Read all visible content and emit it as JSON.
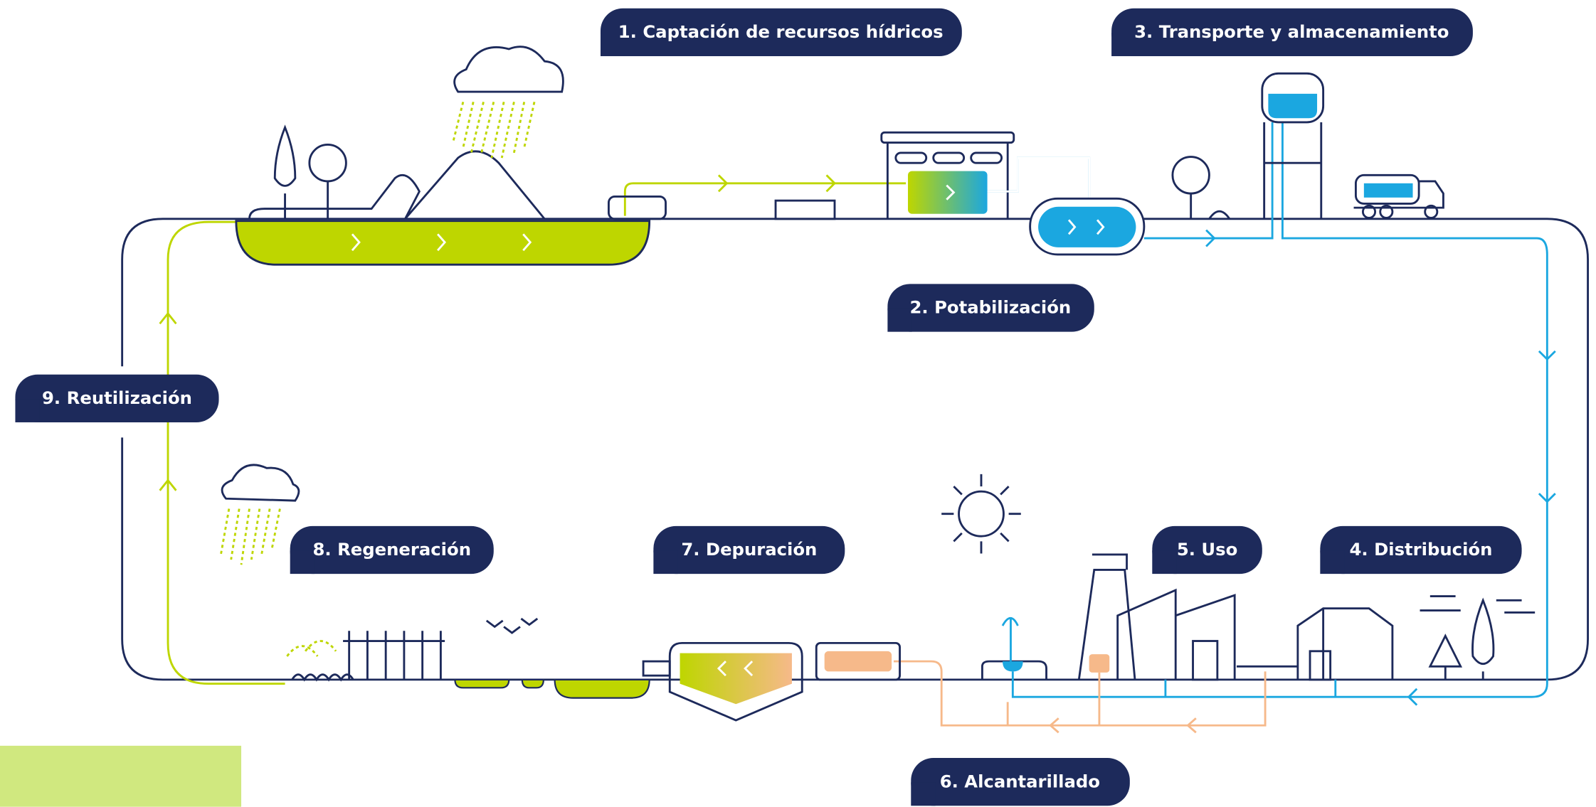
{
  "steps": [
    {
      "label": "1. Captación de recursos hídricos"
    },
    {
      "label": "2. Potabilización"
    },
    {
      "label": "3. Transporte y almacenamiento"
    },
    {
      "label": "4. Distribución"
    },
    {
      "label": "5. Uso"
    },
    {
      "label": "6. Alcantarillado"
    },
    {
      "label": "7. Depuración"
    },
    {
      "label": "8. Regeneración"
    },
    {
      "label": "9. Reutilización"
    }
  ]
}
